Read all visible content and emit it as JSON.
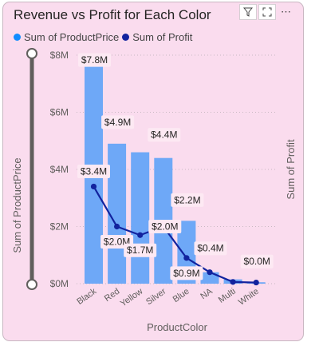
{
  "visual": {
    "title": "Revenue vs Profit for Each Color",
    "icons": {
      "filter": "filter-icon",
      "focus": "focus-mode-icon",
      "more": "more-options-icon"
    }
  },
  "colors": {
    "background": "#fadcee",
    "bar": "#6ea8f7",
    "line": "#12239e",
    "legend_bar": "#118dff",
    "legend_line": "#12239e",
    "label_box": "#fde9f3"
  },
  "chart_data": {
    "type": "bar",
    "title": "Revenue vs Profit for Each Color",
    "xlabel": "ProductColor",
    "ylabel": "Sum of ProductPrice",
    "y2label": "Sum of Profit",
    "categories": [
      "Black",
      "Red",
      "Yellow",
      "Silver",
      "Blue",
      "NA",
      "Multi",
      "White"
    ],
    "ylim": [
      0,
      8
    ],
    "yticks": [
      "$0M",
      "$2M",
      "$4M",
      "$6M",
      "$8M"
    ],
    "legend_position": "top-left",
    "grid": true,
    "series": [
      {
        "name": "Sum of ProductPrice",
        "kind": "bar",
        "values": [
          7.8,
          4.9,
          4.6,
          4.4,
          2.2,
          0.4,
          0.15,
          0.05
        ],
        "labels": [
          "$7.8M",
          "$4.9M",
          "",
          "$4.4M",
          "$2.2M",
          "$0.4M",
          "",
          "$0.0M"
        ]
      },
      {
        "name": "Sum of Profit",
        "kind": "line",
        "values": [
          3.4,
          2.0,
          1.7,
          2.0,
          0.9,
          0.4,
          0.06,
          0.04
        ],
        "labels": [
          "$3.4M",
          "$2.0M",
          "$1.7M",
          "$2.0M",
          "$0.9M",
          "",
          "",
          ""
        ]
      }
    ]
  }
}
